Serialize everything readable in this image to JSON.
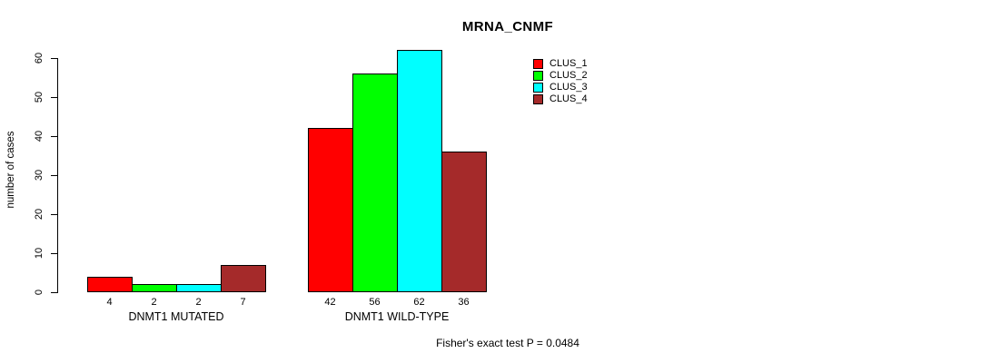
{
  "chart_data": {
    "type": "bar",
    "title": "MRNA_CNMF",
    "ylabel": "number of cases",
    "xlabel": "",
    "ylim": [
      0,
      60
    ],
    "yticks": [
      0,
      10,
      20,
      30,
      40,
      50,
      60
    ],
    "grid": false,
    "legend_position": "inside-top-right-of-plot",
    "categories": [
      "DNMT1 MUTATED",
      "DNMT1 WILD-TYPE"
    ],
    "series": [
      {
        "name": "CLUS_1",
        "color": "#FF0000",
        "values": [
          4,
          42
        ]
      },
      {
        "name": "CLUS_2",
        "color": "#00FF00",
        "values": [
          2,
          56
        ]
      },
      {
        "name": "CLUS_3",
        "color": "#00FFFF",
        "values": [
          2,
          62
        ]
      },
      {
        "name": "CLUS_4",
        "color": "#A52A2A",
        "values": [
          7,
          36
        ]
      }
    ],
    "bar_value_labels": [
      [
        4,
        2,
        2,
        7
      ],
      [
        42,
        56,
        62,
        36
      ]
    ],
    "annotation": "Fisher's exact test P = 0.0484"
  }
}
